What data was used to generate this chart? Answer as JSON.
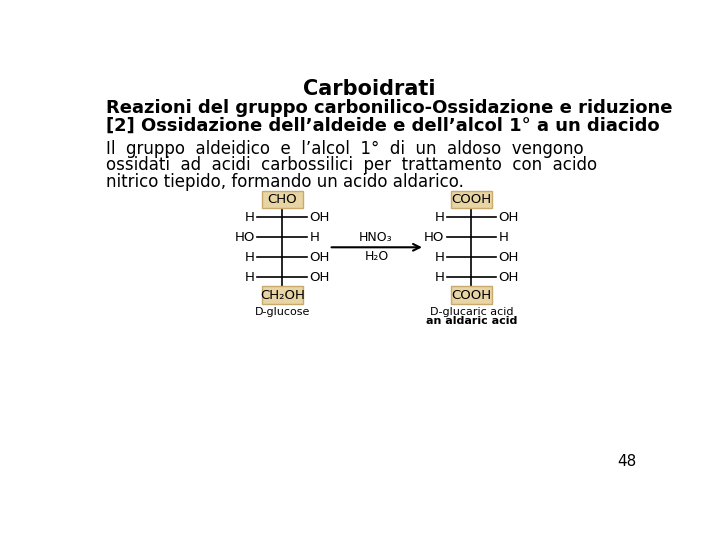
{
  "title": "Carboidrati",
  "line1": "Reazioni del gruppo carbonilico-Ossidazione e riduzione",
  "line2": "[2] Ossidazione dell’aldeide e dell’alcol 1° a un diacido",
  "body_line1": "Il  gruppo  aldeidico  e  l’alcol  1°  di  un  aldoso  vengono",
  "body_line2": "ossidati  ad  acidi  carbossilici  per  trattamento  con  acido",
  "body_line3": "nitrico tiepido, formando un acido aldarico.",
  "page_number": "48",
  "bg_color": "#ffffff",
  "text_color": "#000000",
  "box_fill": "#e8d5a3",
  "box_border": "#c8a96e",
  "glucose_rows": [
    [
      "H",
      "OH"
    ],
    [
      "HO",
      "H"
    ],
    [
      "H",
      "OH"
    ],
    [
      "H",
      "OH"
    ]
  ],
  "glucaric_rows": [
    [
      "H",
      "OH"
    ],
    [
      "HO",
      "H"
    ],
    [
      "H",
      "OH"
    ],
    [
      "H",
      "OH"
    ]
  ],
  "glucose_top": "CHO",
  "glucose_bot": "CH₂OH",
  "glucaric_top": "COOH",
  "glucaric_bot": "COOH",
  "label_left": "D-glucose",
  "label_right1": "D-glucaric acid",
  "label_right2": "an aldaric acid",
  "arrow_label1": "HNO₃",
  "arrow_label2": "H₂O"
}
